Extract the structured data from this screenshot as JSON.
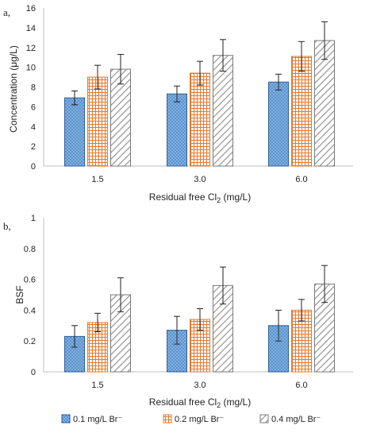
{
  "chart_data": [
    {
      "type": "bar",
      "panel_label": "a,",
      "categories": [
        "1.5",
        "3.0",
        "6.0"
      ],
      "series": [
        {
          "name": "0.1 mg/L Br⁻",
          "values": [
            6.9,
            7.3,
            8.5
          ],
          "errors": [
            0.7,
            0.8,
            0.8
          ]
        },
        {
          "name": "0.2 mg/L Br⁻",
          "values": [
            9.0,
            9.4,
            11.1
          ],
          "errors": [
            1.2,
            1.2,
            1.5
          ]
        },
        {
          "name": "0.4 mg/L Br⁻",
          "values": [
            9.8,
            11.2,
            12.7
          ],
          "errors": [
            1.5,
            1.6,
            1.9
          ]
        }
      ],
      "ylabel": "Concentration (μg/L)",
      "xlabel_main": "Residual free Cl",
      "xlabel_sub": "2",
      "xlabel_tail": " (mg/L)",
      "ylim": [
        0,
        16
      ],
      "yticks": [
        "0",
        "2",
        "4",
        "6",
        "8",
        "10",
        "12",
        "14",
        "16"
      ],
      "legend": false
    },
    {
      "type": "bar",
      "panel_label": "b,",
      "categories": [
        "1.5",
        "3.0",
        "6.0"
      ],
      "series": [
        {
          "name": "0.1 mg/L Br⁻",
          "values": [
            0.23,
            0.27,
            0.3
          ],
          "errors": [
            0.07,
            0.09,
            0.1
          ]
        },
        {
          "name": "0.2 mg/L Br⁻",
          "values": [
            0.32,
            0.34,
            0.4
          ],
          "errors": [
            0.06,
            0.07,
            0.07
          ]
        },
        {
          "name": "0.4 mg/L Br⁻",
          "values": [
            0.5,
            0.56,
            0.57
          ],
          "errors": [
            0.11,
            0.12,
            0.12
          ]
        }
      ],
      "ylabel": "BSF",
      "xlabel_main": "Residual free Cl",
      "xlabel_sub": "2",
      "xlabel_tail": " (mg/L)",
      "ylim": [
        0,
        1
      ],
      "yticks": [
        "0",
        "0.2",
        "0.4",
        "0.6",
        "0.8",
        "1"
      ],
      "legend": true,
      "legend_position": "bottom"
    }
  ],
  "colors": {
    "series_1_fill": "#7fb2e5",
    "series_1_pattern": "#2e5f9e",
    "series_1_stroke": "#2e5f9e",
    "series_2_fill": "#ffffff",
    "series_2_pattern": "#e8782a",
    "series_2_stroke": "#e8782a",
    "series_3_fill": "#ffffff",
    "series_3_pattern": "#8c8c8c",
    "series_3_stroke": "#7a7a7a",
    "axis": "#bfbfbf",
    "error_bar": "#222222"
  }
}
